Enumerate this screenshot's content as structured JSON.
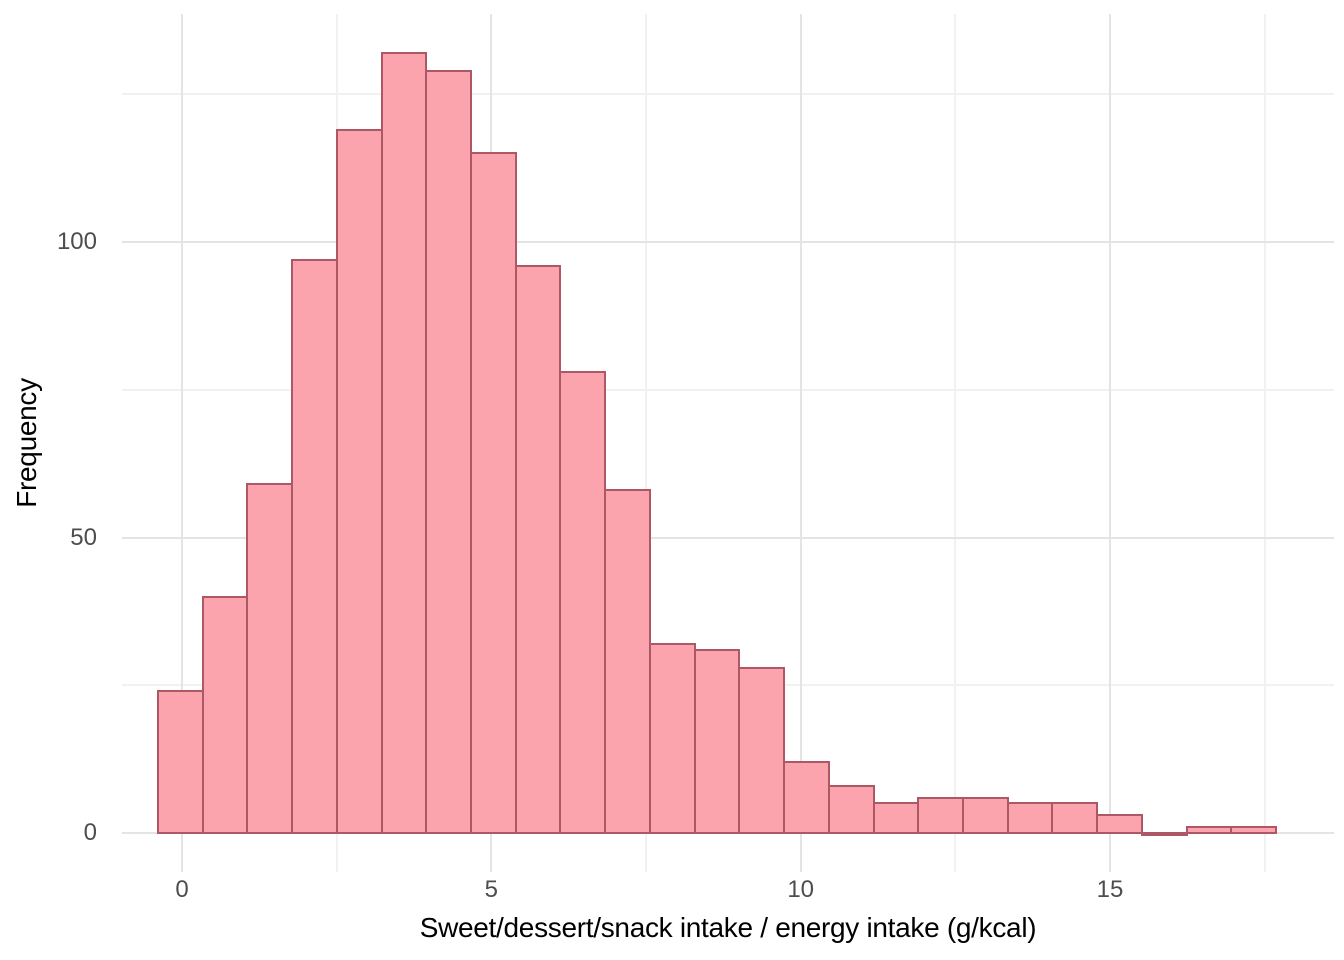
{
  "chart_data": {
    "type": "histogram",
    "title": "",
    "xlabel": "Sweet/dessert/snack intake / energy intake (g/kcal)",
    "ylabel": "Frequency",
    "bin_start": -0.39,
    "bin_width": 0.723,
    "counts": [
      24,
      40,
      59,
      97,
      119,
      132,
      129,
      115,
      96,
      78,
      58,
      32,
      31,
      28,
      12,
      8,
      5,
      6,
      6,
      5,
      5,
      3,
      0,
      1,
      1
    ],
    "bin_centers": [
      0.0,
      0.69,
      1.42,
      2.14,
      2.86,
      3.59,
      4.31,
      5.03,
      5.76,
      6.48,
      7.2,
      7.92,
      8.65,
      9.37,
      10.09,
      10.82,
      11.54,
      12.26,
      12.99,
      13.71,
      14.43,
      15.15,
      15.88,
      16.6,
      17.32
    ],
    "xlim": [
      -0.97,
      18.62
    ],
    "ylim": [
      -6.6,
      138.6
    ],
    "x_tick_values": [
      0,
      5,
      10,
      15
    ],
    "x_tick_labels": [
      "0",
      "5",
      "10",
      "15"
    ],
    "x_minor_values": [
      2.5,
      7.5,
      12.5,
      17.5
    ],
    "y_tick_values": [
      0,
      50,
      100
    ],
    "y_tick_labels": [
      "0",
      "50",
      "100"
    ],
    "y_minor_values": [
      25,
      75,
      125
    ],
    "grid": "major+minor, no axis lines, no tick marks",
    "legend": "none",
    "colors": {
      "background": "#FFFFFF",
      "bar_fill": "#FCA4AE",
      "bar_stroke": "#AE5866",
      "grid_major": "#E4E4E4",
      "grid_minor": "#F1F1F1",
      "tick_label": "#4D4D4D",
      "axis_title": "#000000"
    }
  }
}
